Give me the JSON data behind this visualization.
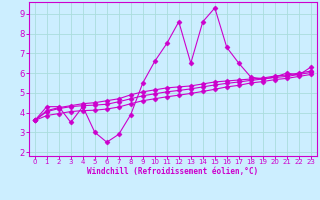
{
  "xlabel": "Windchill (Refroidissement éolien,°C)",
  "xlim": [
    -0.5,
    23.5
  ],
  "ylim": [
    1.8,
    9.6
  ],
  "yticks": [
    2,
    3,
    4,
    5,
    6,
    7,
    8,
    9
  ],
  "xticks": [
    0,
    1,
    2,
    3,
    4,
    5,
    6,
    7,
    8,
    9,
    10,
    11,
    12,
    13,
    14,
    15,
    16,
    17,
    18,
    19,
    20,
    21,
    22,
    23
  ],
  "bg_color": "#cceeff",
  "line_color": "#cc00cc",
  "grid_color": "#aadddd",
  "line1_y": [
    3.6,
    4.3,
    4.3,
    3.5,
    4.3,
    3.0,
    2.5,
    2.9,
    3.9,
    5.5,
    6.6,
    7.5,
    8.6,
    6.5,
    8.6,
    9.3,
    7.3,
    6.5,
    5.8,
    5.7,
    5.8,
    6.0,
    5.9,
    6.3
  ],
  "line2_y": [
    3.6,
    4.1,
    4.25,
    4.35,
    4.45,
    4.5,
    4.6,
    4.7,
    4.9,
    5.05,
    5.15,
    5.25,
    5.3,
    5.35,
    5.45,
    5.55,
    5.6,
    5.65,
    5.7,
    5.75,
    5.85,
    5.9,
    6.0,
    6.1
  ],
  "line3_y": [
    3.6,
    4.05,
    4.2,
    4.3,
    4.35,
    4.38,
    4.42,
    4.55,
    4.7,
    4.85,
    4.95,
    5.05,
    5.12,
    5.2,
    5.3,
    5.4,
    5.48,
    5.55,
    5.63,
    5.7,
    5.78,
    5.83,
    5.93,
    6.03
  ],
  "line4_y": [
    3.6,
    3.85,
    3.95,
    4.05,
    4.1,
    4.12,
    4.18,
    4.28,
    4.45,
    4.6,
    4.7,
    4.8,
    4.88,
    4.97,
    5.07,
    5.18,
    5.3,
    5.38,
    5.5,
    5.57,
    5.67,
    5.73,
    5.83,
    5.93
  ]
}
